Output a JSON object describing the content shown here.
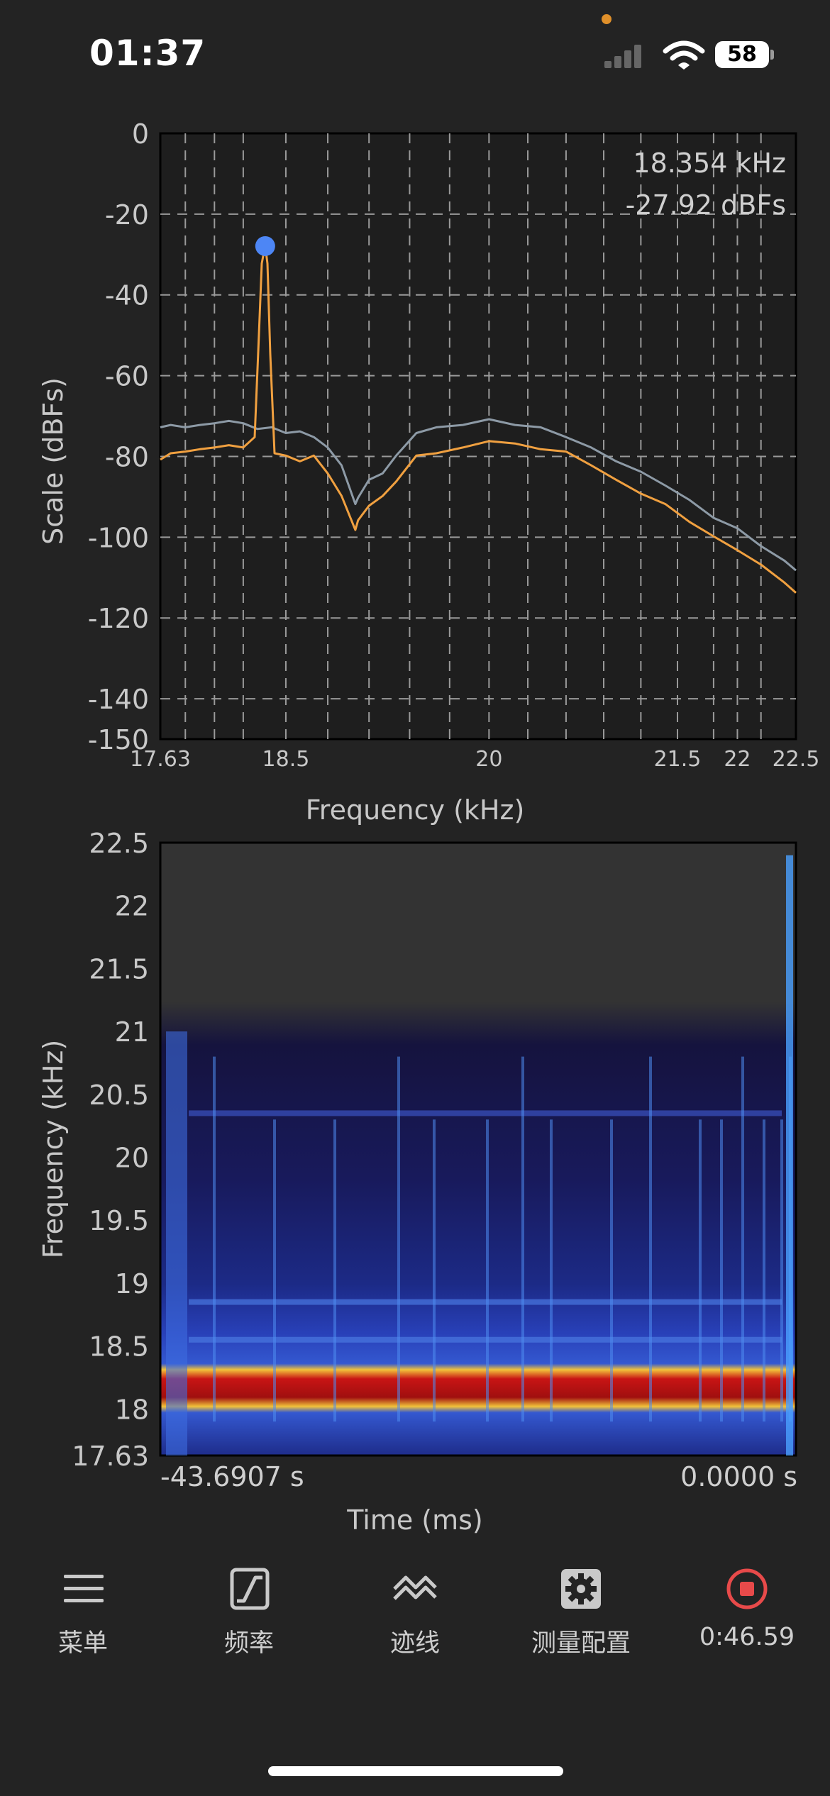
{
  "status": {
    "time": "01:37",
    "battery": "58"
  },
  "spectrum": {
    "ylabel": "Scale (dBFs)",
    "xlabel": "Frequency (kHz)",
    "y_ticks": [
      "0",
      "-20",
      "-40",
      "-60",
      "-80",
      "-100",
      "-120",
      "-140",
      "-150"
    ],
    "x_ticks": [
      "17.63",
      "18.5",
      "20",
      "21.5",
      "22",
      "22.5"
    ],
    "readout_freq": "18.354 kHz",
    "readout_level": "-27.92 dBFs",
    "colors": {
      "current": "#f0a040",
      "peak_hold": "#8d9aa6",
      "marker": "#4d86f5"
    }
  },
  "spectrogram": {
    "ylabel": "Frequency (kHz)",
    "xlabel": "Time (ms)",
    "y_ticks": [
      "22.5",
      "22",
      "21.5",
      "21",
      "20.5",
      "20",
      "19.5",
      "19",
      "18.5",
      "18",
      "17.63"
    ],
    "time_start": "-43.6907 s",
    "time_end": "0.0000 s"
  },
  "chart_data": [
    {
      "type": "line",
      "xlabel": "Frequency (kHz)",
      "ylabel": "Scale (dBFs)",
      "xlim": [
        17.63,
        22.5
      ],
      "ylim": [
        -150,
        0
      ],
      "x_scale": "log",
      "grid": true,
      "x_ticks": [
        17.63,
        18.5,
        20,
        21.5,
        22,
        22.5
      ],
      "y_ticks": [
        0,
        -20,
        -40,
        -60,
        -80,
        -100,
        -120,
        -140,
        -150
      ],
      "annotations": [
        "18.354 kHz",
        "-27.92 dBFs"
      ],
      "marker": {
        "x": 18.354,
        "y": -27.92
      },
      "series": [
        {
          "x": [
            17.63,
            17.7,
            17.8,
            17.9,
            18.0,
            18.1,
            18.2,
            18.28,
            18.31,
            18.33,
            18.354,
            18.37,
            18.39,
            18.42,
            18.5,
            18.6,
            18.7,
            18.8,
            18.9,
            19.0,
            19.02,
            19.1,
            19.2,
            19.3,
            19.45,
            19.6,
            19.8,
            20.0,
            20.2,
            20.4,
            20.6,
            20.8,
            21.0,
            21.2,
            21.4,
            21.6,
            21.8,
            22.0,
            22.2,
            22.4,
            22.5
          ],
          "y": [
            -81,
            -79,
            -79,
            -78,
            -78,
            -77,
            -78,
            -75,
            -50,
            -32,
            -28,
            -32,
            -55,
            -79,
            -80,
            -81,
            -80,
            -84,
            -90,
            -98,
            -96,
            -92,
            -90,
            -86,
            -80,
            -79,
            -78,
            -76,
            -77,
            -78,
            -79,
            -82,
            -86,
            -89,
            -92,
            -96,
            -100,
            -103,
            -107,
            -111,
            -114
          ]
        },
        {
          "x": [
            17.63,
            17.7,
            17.8,
            17.9,
            18.0,
            18.1,
            18.2,
            18.3,
            18.4,
            18.5,
            18.6,
            18.7,
            18.8,
            18.9,
            19.0,
            19.02,
            19.1,
            19.2,
            19.3,
            19.45,
            19.6,
            19.8,
            20.0,
            20.2,
            20.4,
            20.6,
            20.8,
            21.0,
            21.2,
            21.4,
            21.6,
            21.8,
            22.0,
            22.2,
            22.4,
            22.5
          ],
          "y": [
            -73,
            -72,
            -73,
            -72,
            -72,
            -71,
            -72,
            -73,
            -73,
            -74,
            -74,
            -75,
            -78,
            -82,
            -92,
            -90,
            -86,
            -84,
            -80,
            -74,
            -73,
            -72,
            -71,
            -72,
            -73,
            -75,
            -78,
            -81,
            -84,
            -87,
            -91,
            -95,
            -98,
            -102,
            -106,
            -108
          ]
        }
      ]
    }
  ],
  "nav": {
    "menu": "菜单",
    "frequency": "频率",
    "trace": "迹线",
    "measure_config": "测量配置",
    "record_time": "0:46.59"
  }
}
